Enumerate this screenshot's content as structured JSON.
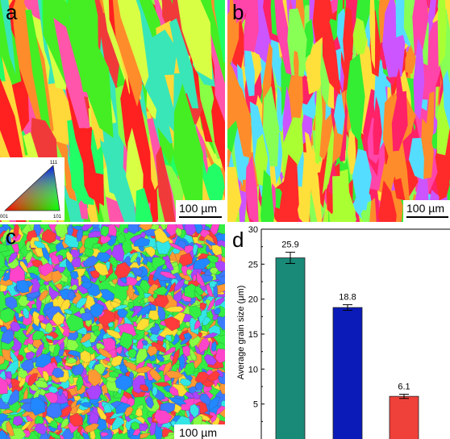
{
  "panels": {
    "a": {
      "label": "a",
      "scale": "100 µm"
    },
    "b": {
      "label": "b",
      "scale": "100 µm"
    },
    "c": {
      "label": "c",
      "scale": "100 µm"
    },
    "d": {
      "label": "d"
    }
  },
  "ipf_legend": {
    "top": "111",
    "left": "001",
    "right": "101"
  },
  "map_colors": {
    "a": [
      "#ff2020",
      "#f03a3a",
      "#44ee22",
      "#88ff44",
      "#ff8c2a",
      "#ff55aa",
      "#ffd83a",
      "#39e6b8",
      "#22ff66",
      "#d8ff44"
    ],
    "b": [
      "#ff2a2a",
      "#33ee33",
      "#ffe03a",
      "#ff44aa",
      "#ff8c2a",
      "#cc55ff",
      "#88ff55",
      "#ff2266",
      "#55ddff",
      "#aaff33"
    ],
    "c": [
      "#ff3b3b",
      "#33ee44",
      "#3b7bff",
      "#ff44cc",
      "#ffdd33",
      "#33e6e6",
      "#aa44ff",
      "#88ff44",
      "#ff9933",
      "#2288ff"
    ]
  },
  "chart_data": {
    "type": "bar",
    "ylabel": "Average grain size (μm)",
    "ylim": [
      0,
      30
    ],
    "yticks": [
      5,
      10,
      15,
      20,
      25,
      30
    ],
    "values": [
      25.9,
      18.8,
      6.1
    ],
    "errors": [
      0.8,
      0.4,
      0.3
    ],
    "value_labels": [
      "25.9",
      "18.8",
      "6.1"
    ],
    "colors": [
      "#198a78",
      "#0a1bb8",
      "#f0403a"
    ],
    "grid": false
  }
}
